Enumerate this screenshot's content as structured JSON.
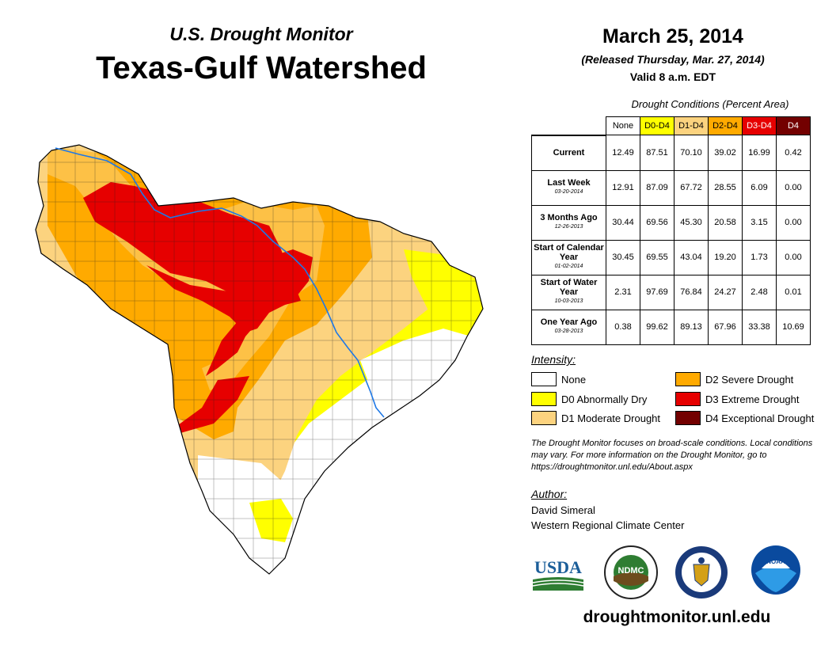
{
  "header": {
    "subtitle": "U.S. Drought Monitor",
    "title": "Texas-Gulf Watershed",
    "date": "March 25, 2014",
    "released": "(Released Thursday, Mar. 27, 2014)",
    "valid": "Valid 8 a.m. EDT"
  },
  "table": {
    "caption": "Drought Conditions (Percent Area)",
    "columns": [
      "None",
      "D0-D4",
      "D1-D4",
      "D2-D4",
      "D3-D4",
      "D4"
    ],
    "column_colors": [
      "#ffffff",
      "#ffff00",
      "#fcd37f",
      "#ffaa00",
      "#e60000",
      "#730000"
    ],
    "rows": [
      {
        "label": "Current",
        "date": "",
        "values": [
          "12.49",
          "87.51",
          "70.10",
          "39.02",
          "16.99",
          "0.42"
        ]
      },
      {
        "label": "Last Week",
        "date": "03-20-2014",
        "values": [
          "12.91",
          "87.09",
          "67.72",
          "28.55",
          "6.09",
          "0.00"
        ]
      },
      {
        "label": "3 Months Ago",
        "date": "12-26-2013",
        "values": [
          "30.44",
          "69.56",
          "45.30",
          "20.58",
          "3.15",
          "0.00"
        ]
      },
      {
        "label": "Start of Calendar Year",
        "date": "01-02-2014",
        "values": [
          "30.45",
          "69.55",
          "43.04",
          "19.20",
          "1.73",
          "0.00"
        ]
      },
      {
        "label": "Start of Water Year",
        "date": "10-03-2013",
        "values": [
          "2.31",
          "97.69",
          "76.84",
          "24.27",
          "2.48",
          "0.01"
        ]
      },
      {
        "label": "One Year Ago",
        "date": "03-28-2013",
        "values": [
          "0.38",
          "99.62",
          "89.13",
          "67.96",
          "33.38",
          "10.69"
        ]
      }
    ]
  },
  "legend": {
    "title": "Intensity:",
    "items": [
      {
        "label": "None",
        "color": "#ffffff"
      },
      {
        "label": "D0 Abnormally Dry",
        "color": "#ffff00"
      },
      {
        "label": "D1 Moderate Drought",
        "color": "#fcd37f"
      },
      {
        "label": "D2 Severe Drought",
        "color": "#ffaa00"
      },
      {
        "label": "D3 Extreme Drought",
        "color": "#e60000"
      },
      {
        "label": "D4 Exceptional Drought",
        "color": "#730000"
      }
    ]
  },
  "note": "The Drought Monitor focuses on broad-scale conditions. Local conditions may vary. For more information on the Drought Monitor, go to https://droughtmonitor.unl.edu/About.aspx",
  "author": {
    "title": "Author:",
    "name": "David Simeral",
    "org": "Western Regional Climate Center"
  },
  "logos": {
    "usda": "USDA",
    "ndmc": "NDMC",
    "noaa": "NOAA"
  },
  "footer_url": "droughtmonitor.unl.edu"
}
